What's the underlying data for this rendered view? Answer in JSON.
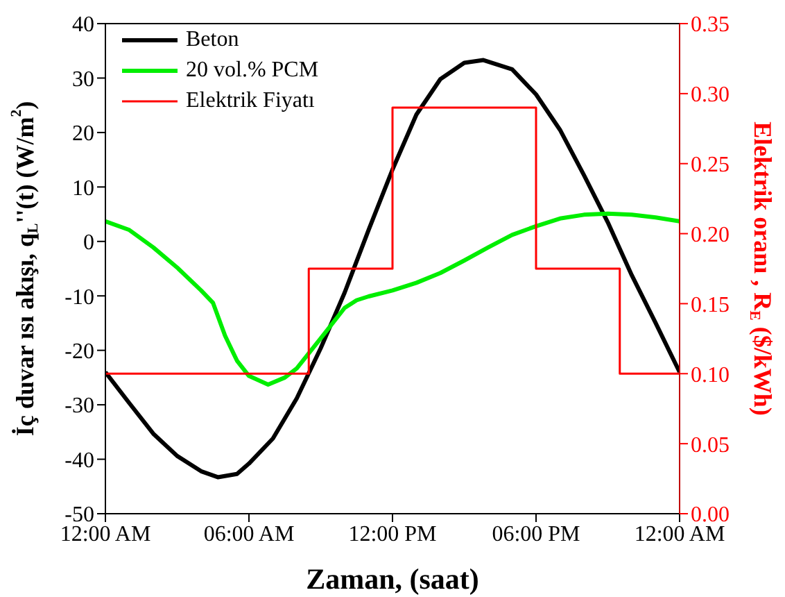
{
  "chart_data": {
    "type": "line",
    "xlabel": "Zaman, (saat)",
    "ylabel": "İç duvar ısı akışı, q$_{L}$''(t) (W/m$^{2}$)",
    "y2label": "Elektrik oranı , R$_{E}$ ($/kWh)",
    "xlim": [
      0,
      24
    ],
    "xticks": [
      {
        "value": 0,
        "label": "12:00 AM"
      },
      {
        "value": 6,
        "label": "06:00 AM"
      },
      {
        "value": 12,
        "label": "12:00 PM"
      },
      {
        "value": 18,
        "label": "06:00 PM"
      },
      {
        "value": 24,
        "label": "12:00 AM"
      }
    ],
    "ylim": [
      -50,
      40
    ],
    "yticks": [
      -50,
      -40,
      -30,
      -20,
      -10,
      0,
      10,
      20,
      30,
      40
    ],
    "y2lim": [
      0,
      0.35
    ],
    "y2ticks": [
      {
        "value": 0,
        "label": "0.00"
      },
      {
        "value": 0.05,
        "label": "0.05"
      },
      {
        "value": 0.1,
        "label": "0.10"
      },
      {
        "value": 0.15,
        "label": "0.15"
      },
      {
        "value": 0.2,
        "label": "0.20"
      },
      {
        "value": 0.25,
        "label": "0.25"
      },
      {
        "value": 0.3,
        "label": "0.30"
      },
      {
        "value": 0.35,
        "label": "0.35"
      }
    ],
    "grid": false,
    "legend": "top left",
    "marker": "none",
    "series": [
      {
        "name": "Beton",
        "color": "#000000",
        "x": [
          0,
          1,
          2,
          3,
          4,
          4.7,
          5.5,
          6,
          7,
          8,
          9,
          10,
          11,
          12,
          13,
          14,
          15,
          15.8,
          17,
          18,
          19,
          20,
          21,
          22,
          23,
          24
        ],
        "values": [
          -24,
          -29.7,
          -35.3,
          -39.4,
          -42.2,
          -43.3,
          -42.7,
          -40.8,
          -36.2,
          -28.8,
          -19.6,
          -9.4,
          2.1,
          13.2,
          23.3,
          29.8,
          32.8,
          33.3,
          31.6,
          27,
          20.5,
          12.2,
          3.5,
          -6.2,
          -15,
          -24
        ]
      },
      {
        "name": "20 vol.% PCM",
        "color": "#00ee00",
        "x": [
          0,
          1,
          2,
          3,
          4,
          4.5,
          5,
          5.5,
          6,
          6.8,
          7.5,
          8,
          9,
          10,
          10.5,
          11,
          12,
          13,
          14,
          15,
          16,
          17,
          18,
          19,
          20,
          21,
          22,
          23,
          24
        ],
        "values": [
          3.7,
          2.1,
          -1.1,
          -4.8,
          -9,
          -11.3,
          -17.3,
          -21.9,
          -24.7,
          -26.3,
          -25,
          -23.3,
          -17.8,
          -12.2,
          -10.8,
          -10.1,
          -9,
          -7.6,
          -5.8,
          -3.5,
          -1.1,
          1.2,
          2.8,
          4.2,
          4.9,
          5.1,
          4.9,
          4.4,
          3.7
        ]
      },
      {
        "name": "Elektrik Fiyatı",
        "type": "step",
        "axis": "y2",
        "color": "#ff0000",
        "x": [
          0,
          8.5,
          12,
          18,
          21.5,
          24
        ],
        "values": [
          0.1,
          0.175,
          0.29,
          0.175,
          0.1,
          0.1
        ]
      }
    ]
  }
}
